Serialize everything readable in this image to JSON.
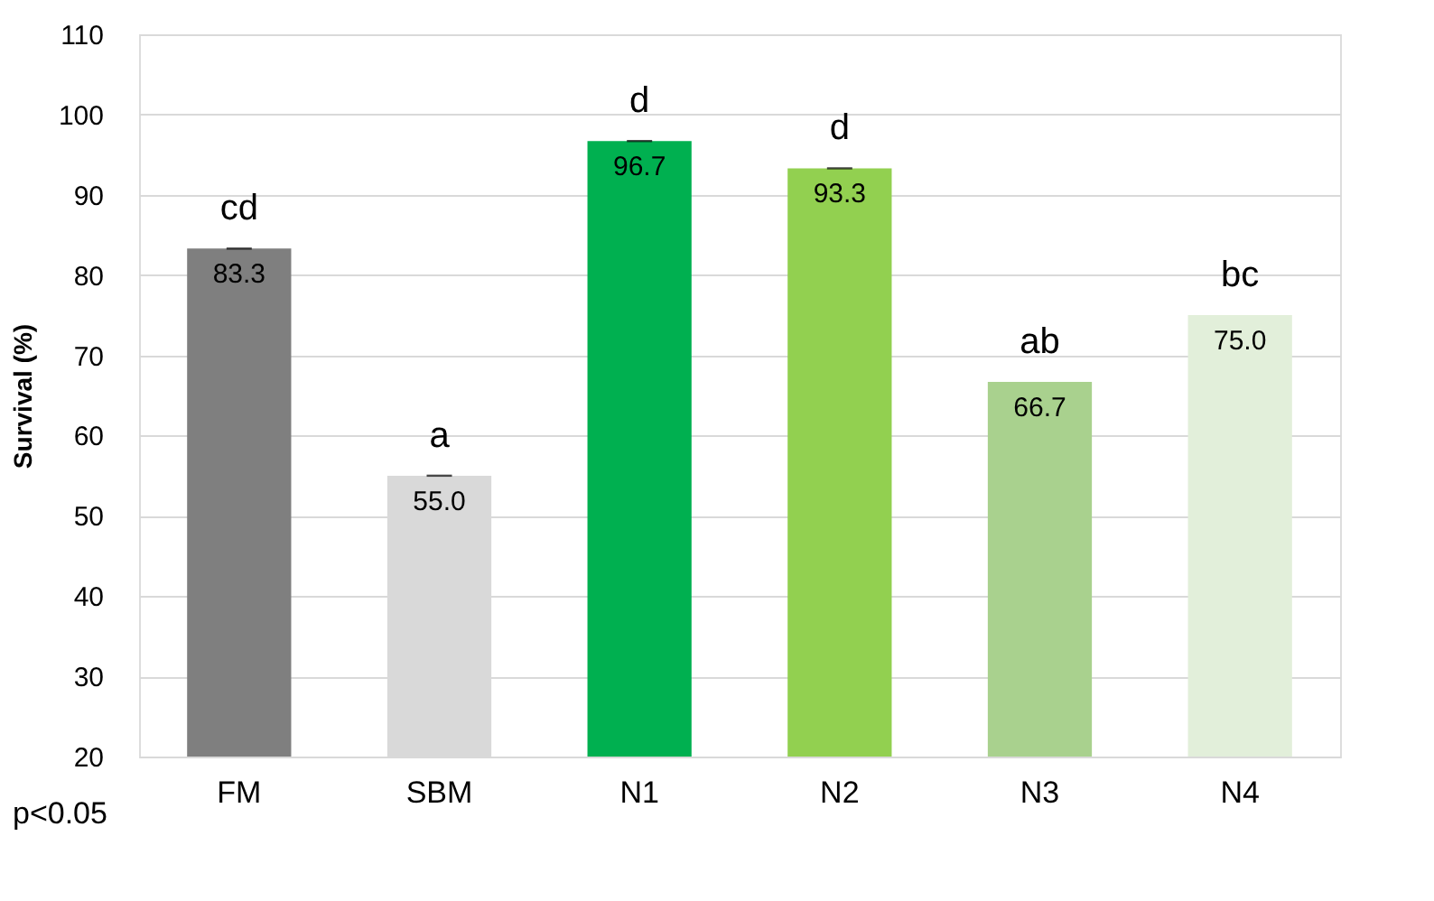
{
  "chart_data": {
    "type": "bar",
    "ylabel": "Survival (%)",
    "categories": [
      "FM",
      "SBM",
      "N1",
      "N2",
      "N3",
      "N4"
    ],
    "values": [
      83.3,
      55.0,
      96.7,
      93.3,
      66.7,
      75.0
    ],
    "colors": [
      "#7f7f7f",
      "#d9d9d9",
      "#00b050",
      "#92d050",
      "#a9d18e",
      "#e2efda"
    ],
    "value_labels": [
      "83.3",
      "55.0",
      "96.7",
      "93.3",
      "66.7",
      "75.0"
    ],
    "errors": [
      0,
      0,
      0,
      0,
      null,
      null
    ],
    "ylim": [
      20,
      110
    ],
    "yticks": [
      20,
      30,
      40,
      50,
      60,
      70,
      80,
      90,
      100,
      110
    ],
    "grid": "y",
    "annotations": [
      {
        "text": "cd",
        "x": "FM",
        "y": 83.3
      },
      {
        "text": "a",
        "x": "SBM",
        "y": 55.0
      },
      {
        "text": "d",
        "x": "N1",
        "y": 96.7
      },
      {
        "text": "d",
        "x": "N2",
        "y": 93.3
      },
      {
        "text": "ab",
        "x": "N3",
        "y": 66.7
      },
      {
        "text": "bc",
        "x": "N4",
        "y": 75.0
      },
      "p<0.05"
    ]
  }
}
